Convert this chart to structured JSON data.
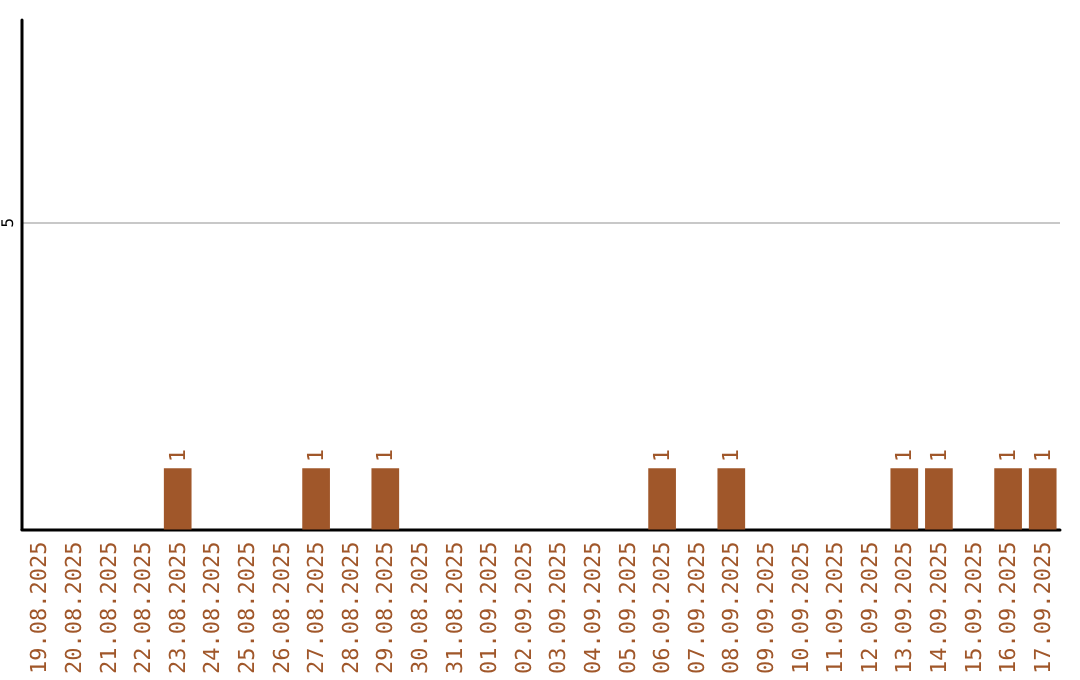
{
  "chart_data": {
    "type": "bar",
    "categories": [
      "19.08.2025",
      "20.08.2025",
      "21.08.2025",
      "22.08.2025",
      "23.08.2025",
      "24.08.2025",
      "25.08.2025",
      "26.08.2025",
      "27.08.2025",
      "28.08.2025",
      "29.08.2025",
      "30.08.2025",
      "31.08.2025",
      "01.09.2025",
      "02.09.2025",
      "03.09.2025",
      "04.09.2025",
      "05.09.2025",
      "06.09.2025",
      "07.09.2025",
      "08.09.2025",
      "09.09.2025",
      "10.09.2025",
      "11.09.2025",
      "12.09.2025",
      "13.09.2025",
      "14.09.2025",
      "15.09.2025",
      "16.09.2025",
      "17.09.2025"
    ],
    "values": [
      0,
      0,
      0,
      0,
      1,
      0,
      0,
      0,
      1,
      0,
      1,
      0,
      0,
      0,
      0,
      0,
      0,
      0,
      1,
      0,
      1,
      0,
      0,
      0,
      0,
      1,
      1,
      0,
      1,
      1
    ],
    "value_labels": [
      null,
      null,
      null,
      null,
      "1",
      null,
      null,
      null,
      "1",
      null,
      "1",
      null,
      null,
      null,
      null,
      null,
      null,
      null,
      "1",
      null,
      "1",
      null,
      null,
      null,
      null,
      "1",
      "1",
      null,
      "1",
      "1"
    ],
    "color": "#a0572a",
    "ylim": [
      0,
      8.3
    ],
    "yticks": [
      5
    ],
    "grid": "y"
  }
}
